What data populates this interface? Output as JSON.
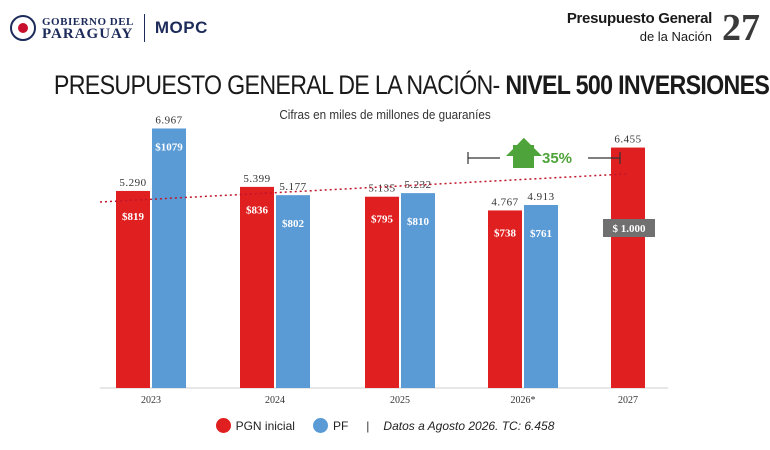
{
  "header": {
    "gov_line1": "GOBIERNO DEL",
    "gov_line2": "PARAGUAY",
    "ministry": "MOPC",
    "badge_line1": "Presupuesto General",
    "badge_line2": "de la Nación",
    "badge_number": "27"
  },
  "title_regular": "PRESUPUESTO GENERAL DE LA NACIÓN- ",
  "title_bold": "NIVEL 500 INVERSIONES",
  "subtitle": "Cifras en miles de millones de guaraníes",
  "growth_label": "35%",
  "legend": {
    "pgn": "PGN inicial",
    "pf": "PF",
    "separator": "|",
    "note": "Datos a Agosto 2026. TC: 6.458"
  },
  "colors": {
    "pgn": "#e02020",
    "pf": "#5b9bd5",
    "trend": "#c0152a",
    "growth": "#4ea33a",
    "callout": "#707070"
  },
  "chart_data": {
    "type": "bar",
    "categories": [
      "2023",
      "2024",
      "2025",
      "2026*",
      "2027"
    ],
    "series": [
      {
        "name": "PGN inicial",
        "values": [
          5290,
          5399,
          5135,
          4767,
          6455
        ],
        "top_labels": [
          "5.290",
          "5.399",
          "5.135",
          "4.767",
          "6.455"
        ],
        "inner_labels": [
          "$819",
          "$836",
          "$795",
          "$738",
          ""
        ]
      },
      {
        "name": "PF",
        "values": [
          6967,
          5177,
          5232,
          4913,
          null
        ],
        "top_labels": [
          "6.967",
          "5.177",
          "5.232",
          "4.913",
          ""
        ],
        "inner_labels": [
          "$1079",
          "$802",
          "$810",
          "$761",
          ""
        ]
      }
    ],
    "callout": "$ 1.000",
    "trendline": "linear",
    "ylim": [
      0,
      8000
    ],
    "grid": false,
    "legend_position": "bottom"
  }
}
